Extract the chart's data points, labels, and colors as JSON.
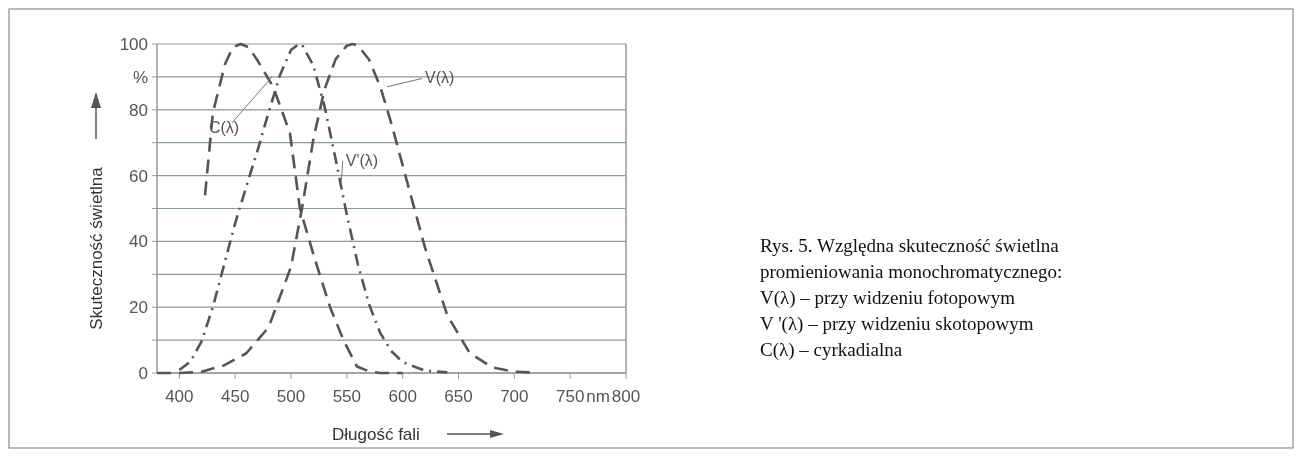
{
  "chart_data": {
    "type": "line",
    "xlabel": "Długość fali",
    "ylabel": "Skuteczność świetlna",
    "xlim": [
      380,
      800
    ],
    "ylim": [
      0,
      100
    ],
    "xticks": [
      400,
      450,
      500,
      550,
      600,
      650,
      700,
      750,
      {
        "value": 775,
        "label": "nm"
      },
      800
    ],
    "yticks": [
      0,
      {
        "value": 10,
        "label": null
      },
      20,
      {
        "value": 30,
        "label": null
      },
      40,
      {
        "value": 50,
        "label": null
      },
      60,
      {
        "value": 70,
        "label": null
      },
      80,
      {
        "value": 90,
        "label": "%"
      },
      100
    ],
    "grid": "y",
    "series": [
      {
        "name": "V(λ)",
        "color": "#555555",
        "line_style": "dashed",
        "x": [
          380,
          400,
          420,
          440,
          460,
          480,
          500,
          510,
          520,
          530,
          540,
          550,
          555,
          560,
          570,
          580,
          590,
          600,
          620,
          640,
          660,
          680,
          700,
          720
        ],
        "values": [
          0,
          0,
          0.4,
          2.3,
          6,
          13.9,
          32.3,
          50.3,
          71,
          86.2,
          95.4,
          99.5,
          100,
          99.5,
          95.2,
          87,
          75.7,
          63.1,
          38.1,
          17.5,
          6.1,
          1.7,
          0.4,
          0.1
        ]
      },
      {
        "name": "V'(λ)",
        "color": "#555555",
        "line_style": "dashdot",
        "x": [
          400,
          410,
          420,
          430,
          440,
          450,
          460,
          470,
          480,
          490,
          500,
          507,
          510,
          520,
          530,
          540,
          550,
          560,
          570,
          580,
          590,
          600,
          620,
          640
        ],
        "values": [
          0.9,
          3.5,
          9.7,
          20,
          32.8,
          45.5,
          56.7,
          67.6,
          79.3,
          90.4,
          98.2,
          100,
          99.7,
          93.5,
          81.1,
          65,
          48.1,
          32.9,
          20.8,
          12.1,
          6.6,
          3.3,
          0.7,
          0.2
        ]
      },
      {
        "name": "C(λ)",
        "color": "#555555",
        "line_style": "dashed",
        "x": [
          423,
          430,
          441,
          448,
          455,
          462,
          470,
          484,
          499,
          508,
          521,
          535,
          547,
          559,
          570,
          580,
          600
        ],
        "values": [
          54,
          79,
          94,
          99,
          100,
          99,
          95,
          87,
          73,
          50,
          35,
          20,
          10,
          2,
          0.5,
          0,
          0
        ]
      }
    ],
    "annotations": [
      "Rys. 5. Względna skuteczność świetlna promieniowania monochromatycznego:",
      "V(λ) – przy widzeniu fotopowym",
      "V '(λ) – przy widzeniu skotopowym",
      "C(λ) – cyrkadialna"
    ]
  }
}
